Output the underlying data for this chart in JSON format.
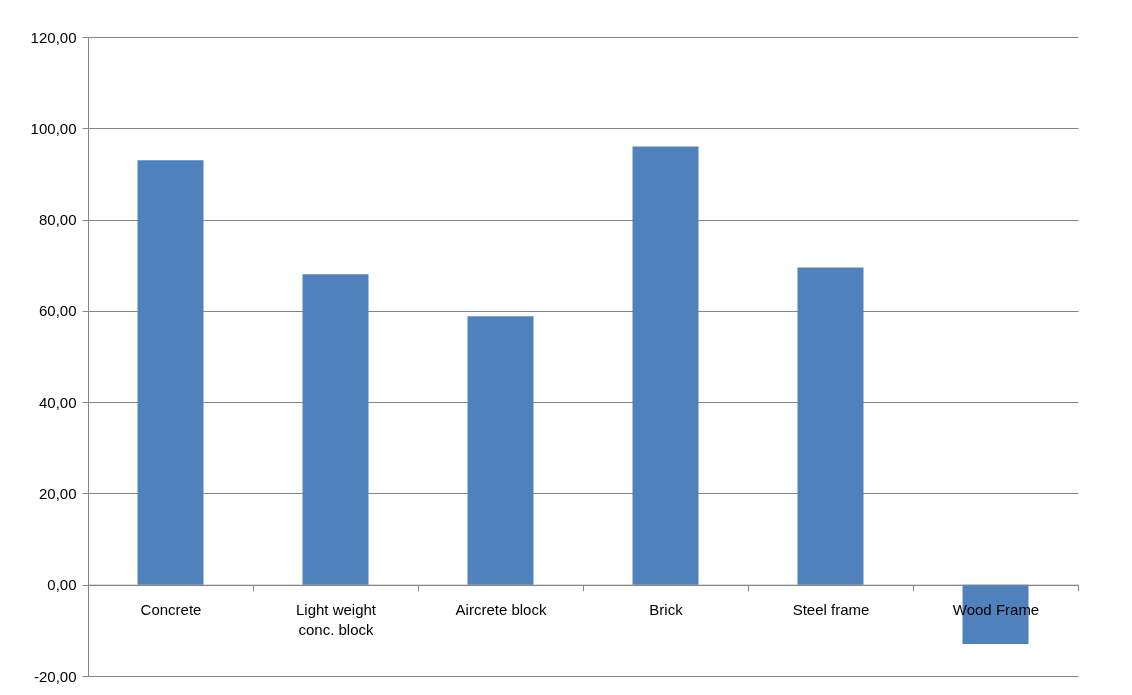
{
  "chart_data": {
    "type": "bar",
    "categories": [
      "Concrete",
      "Light weight conc. block",
      "Aircrete block",
      "Brick",
      "Steel frame",
      "Wood Frame"
    ],
    "values": [
      93,
      68,
      58.8,
      96,
      69.5,
      -13
    ],
    "color": "#4f81bd",
    "ylim": [
      -20,
      120
    ],
    "yticks": [
      {
        "value": -20,
        "label": "-20,00"
      },
      {
        "value": 0,
        "label": "0,00"
      },
      {
        "value": 20,
        "label": "20,00"
      },
      {
        "value": 40,
        "label": "40,00"
      },
      {
        "value": 60,
        "label": "60,00"
      },
      {
        "value": 80,
        "label": "80,00"
      },
      {
        "value": 100,
        "label": "100,00"
      },
      {
        "value": 120,
        "label": "120,00"
      }
    ],
    "grid": "y"
  }
}
